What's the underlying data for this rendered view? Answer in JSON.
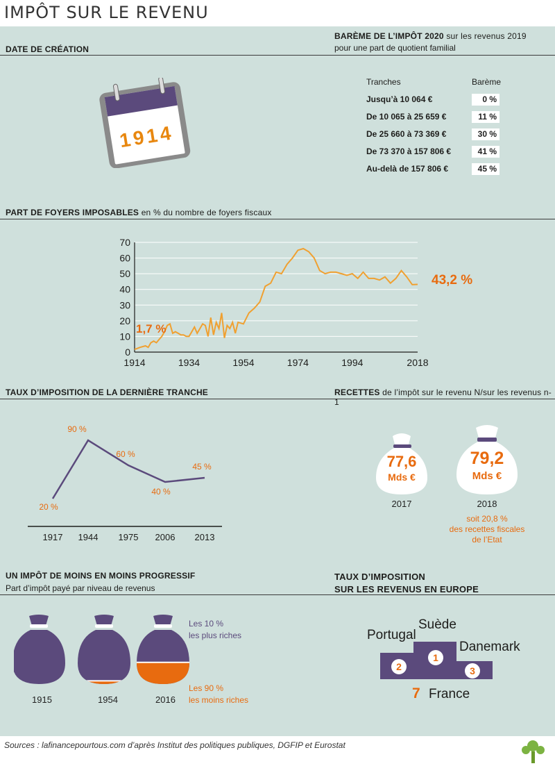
{
  "page_title": "IMPÔT SUR LE REVENU",
  "creation": {
    "header": "DATE DE CRÉATION",
    "year": "1914"
  },
  "bareme": {
    "header_bold": "BARÈME DE L’IMPÔT 2020",
    "header_light": "sur les revenus 2019",
    "subtitle": "pour une part de quotient familial",
    "col_tranches": "Tranches",
    "col_bareme": "Barème",
    "rows": [
      {
        "label": "Jusqu’à 10 064 €",
        "rate": "0 %"
      },
      {
        "label": "De 10 065 à 25 659 €",
        "rate": "11 %"
      },
      {
        "label": "De 25 660 à 73 369 €",
        "rate": "30 %"
      },
      {
        "label": "De 73 370 à 157 806 €",
        "rate": "41 %"
      },
      {
        "label": "Au-delà de 157 806 €",
        "rate": "45 %"
      }
    ]
  },
  "foyers": {
    "header_bold": "PART DE FOYERS IMPOSABLES",
    "header_light": "en % du nombre de foyers fiscaux",
    "start_label": "1,7 %",
    "end_label": "43,2 %"
  },
  "derniere_tranche": {
    "header": "TAUX D’IMPOSITION DE LA DERNIÈRE TRANCHE",
    "point_labels": [
      "20 %",
      "90 %",
      "60 %",
      "40 %",
      "45 %"
    ],
    "year_labels": [
      "1917",
      "1944",
      "1975",
      "2006",
      "2013"
    ]
  },
  "recettes": {
    "header_bold": "RECETTES",
    "header_light": "de l’impôt sur le revenu N/sur les revenus n-1",
    "bags": [
      {
        "value": "77,6",
        "unit": "Mds €",
        "year": "2017"
      },
      {
        "value": "79,2",
        "unit": "Mds €",
        "year": "2018"
      }
    ],
    "note": [
      "soit 20,8 %",
      "des recettes fiscales",
      "de l’Etat"
    ]
  },
  "progressif": {
    "header": "UN IMPÔT DE MOINS EN MOINS PROGRESSIF",
    "subtitle": "Part d’impôt payé par niveau de revenus",
    "years": [
      "1915",
      "1954",
      "2016"
    ],
    "share_bottom_90": [
      0.0,
      0.06,
      0.4
    ],
    "legend_top": [
      "Les 10 %",
      "les plus riches"
    ],
    "legend_bottom": [
      "Les 90 %",
      "les moins riches"
    ]
  },
  "europe": {
    "header": [
      "TAUX D’IMPOSITION",
      "SUR LES REVENUS EN EUROPE"
    ],
    "podium": [
      {
        "rank": "1",
        "country": "Suède"
      },
      {
        "rank": "2",
        "country": "Portugal"
      },
      {
        "rank": "3",
        "country": "Danemark"
      }
    ],
    "france": {
      "rank": "7",
      "country": "France"
    }
  },
  "sources": "Sources : lafinancepourtous.com d’après Institut des politiques publiques, DGFIP et Eurostat",
  "colors": {
    "purple": "#5b4a7c",
    "orange": "#e86b0f",
    "panel": "#cfe0dc",
    "line_orange": "#f0a030"
  },
  "chart_data": [
    {
      "type": "line",
      "title": "PART DE FOYERS IMPOSABLES",
      "ylabel": "",
      "xlabel": "",
      "x_ticks": [
        1914,
        1934,
        1954,
        1974,
        1994,
        2018
      ],
      "y_ticks": [
        0,
        10,
        20,
        30,
        40,
        50,
        60,
        70
      ],
      "xlim": [
        1914,
        2018
      ],
      "ylim": [
        0,
        70
      ],
      "grid": true,
      "x": [
        1914,
        1916,
        1918,
        1919,
        1920,
        1921,
        1922,
        1923,
        1924,
        1925,
        1926,
        1927,
        1928,
        1929,
        1930,
        1931,
        1932,
        1933,
        1934,
        1935,
        1936,
        1937,
        1938,
        1939,
        1940,
        1941,
        1942,
        1943,
        1944,
        1945,
        1946,
        1947,
        1948,
        1949,
        1950,
        1951,
        1952,
        1954,
        1956,
        1958,
        1960,
        1962,
        1964,
        1966,
        1968,
        1970,
        1972,
        1974,
        1976,
        1978,
        1980,
        1982,
        1984,
        1986,
        1988,
        1990,
        1992,
        1994,
        1996,
        1998,
        2000,
        2002,
        2004,
        2006,
        2008,
        2010,
        2012,
        2014,
        2016,
        2018
      ],
      "y": [
        1.7,
        3,
        4,
        3,
        6,
        7,
        6,
        8,
        10,
        13,
        17,
        18,
        12,
        13,
        12,
        11,
        11,
        10,
        10,
        13,
        16,
        12,
        15,
        18,
        17,
        10,
        22,
        11,
        19,
        15,
        25,
        9,
        17,
        15,
        19,
        12,
        19,
        18,
        25,
        28,
        32,
        42,
        44,
        51,
        50,
        56,
        60,
        65,
        66,
        64,
        60,
        52,
        50,
        51,
        51,
        50,
        49,
        50,
        47,
        51,
        47,
        47,
        46,
        48,
        44,
        47,
        52,
        48,
        43,
        43.2
      ]
    },
    {
      "type": "line",
      "title": "TAUX D’IMPOSITION DE LA DERNIÈRE TRANCHE",
      "categories": [
        "1917",
        "1944",
        "1975",
        "2006",
        "2013"
      ],
      "values": [
        20,
        90,
        60,
        40,
        45
      ]
    },
    {
      "type": "pie",
      "title": "UN IMPÔT DE MOINS EN MOINS PROGRESSIF",
      "categories": [
        "1915",
        "1954",
        "2016"
      ],
      "series": [
        {
          "name": "Les 10 % les plus riches",
          "values": [
            100,
            94,
            60
          ]
        },
        {
          "name": "Les 90 % les moins riches",
          "values": [
            0,
            6,
            40
          ]
        }
      ]
    }
  ]
}
